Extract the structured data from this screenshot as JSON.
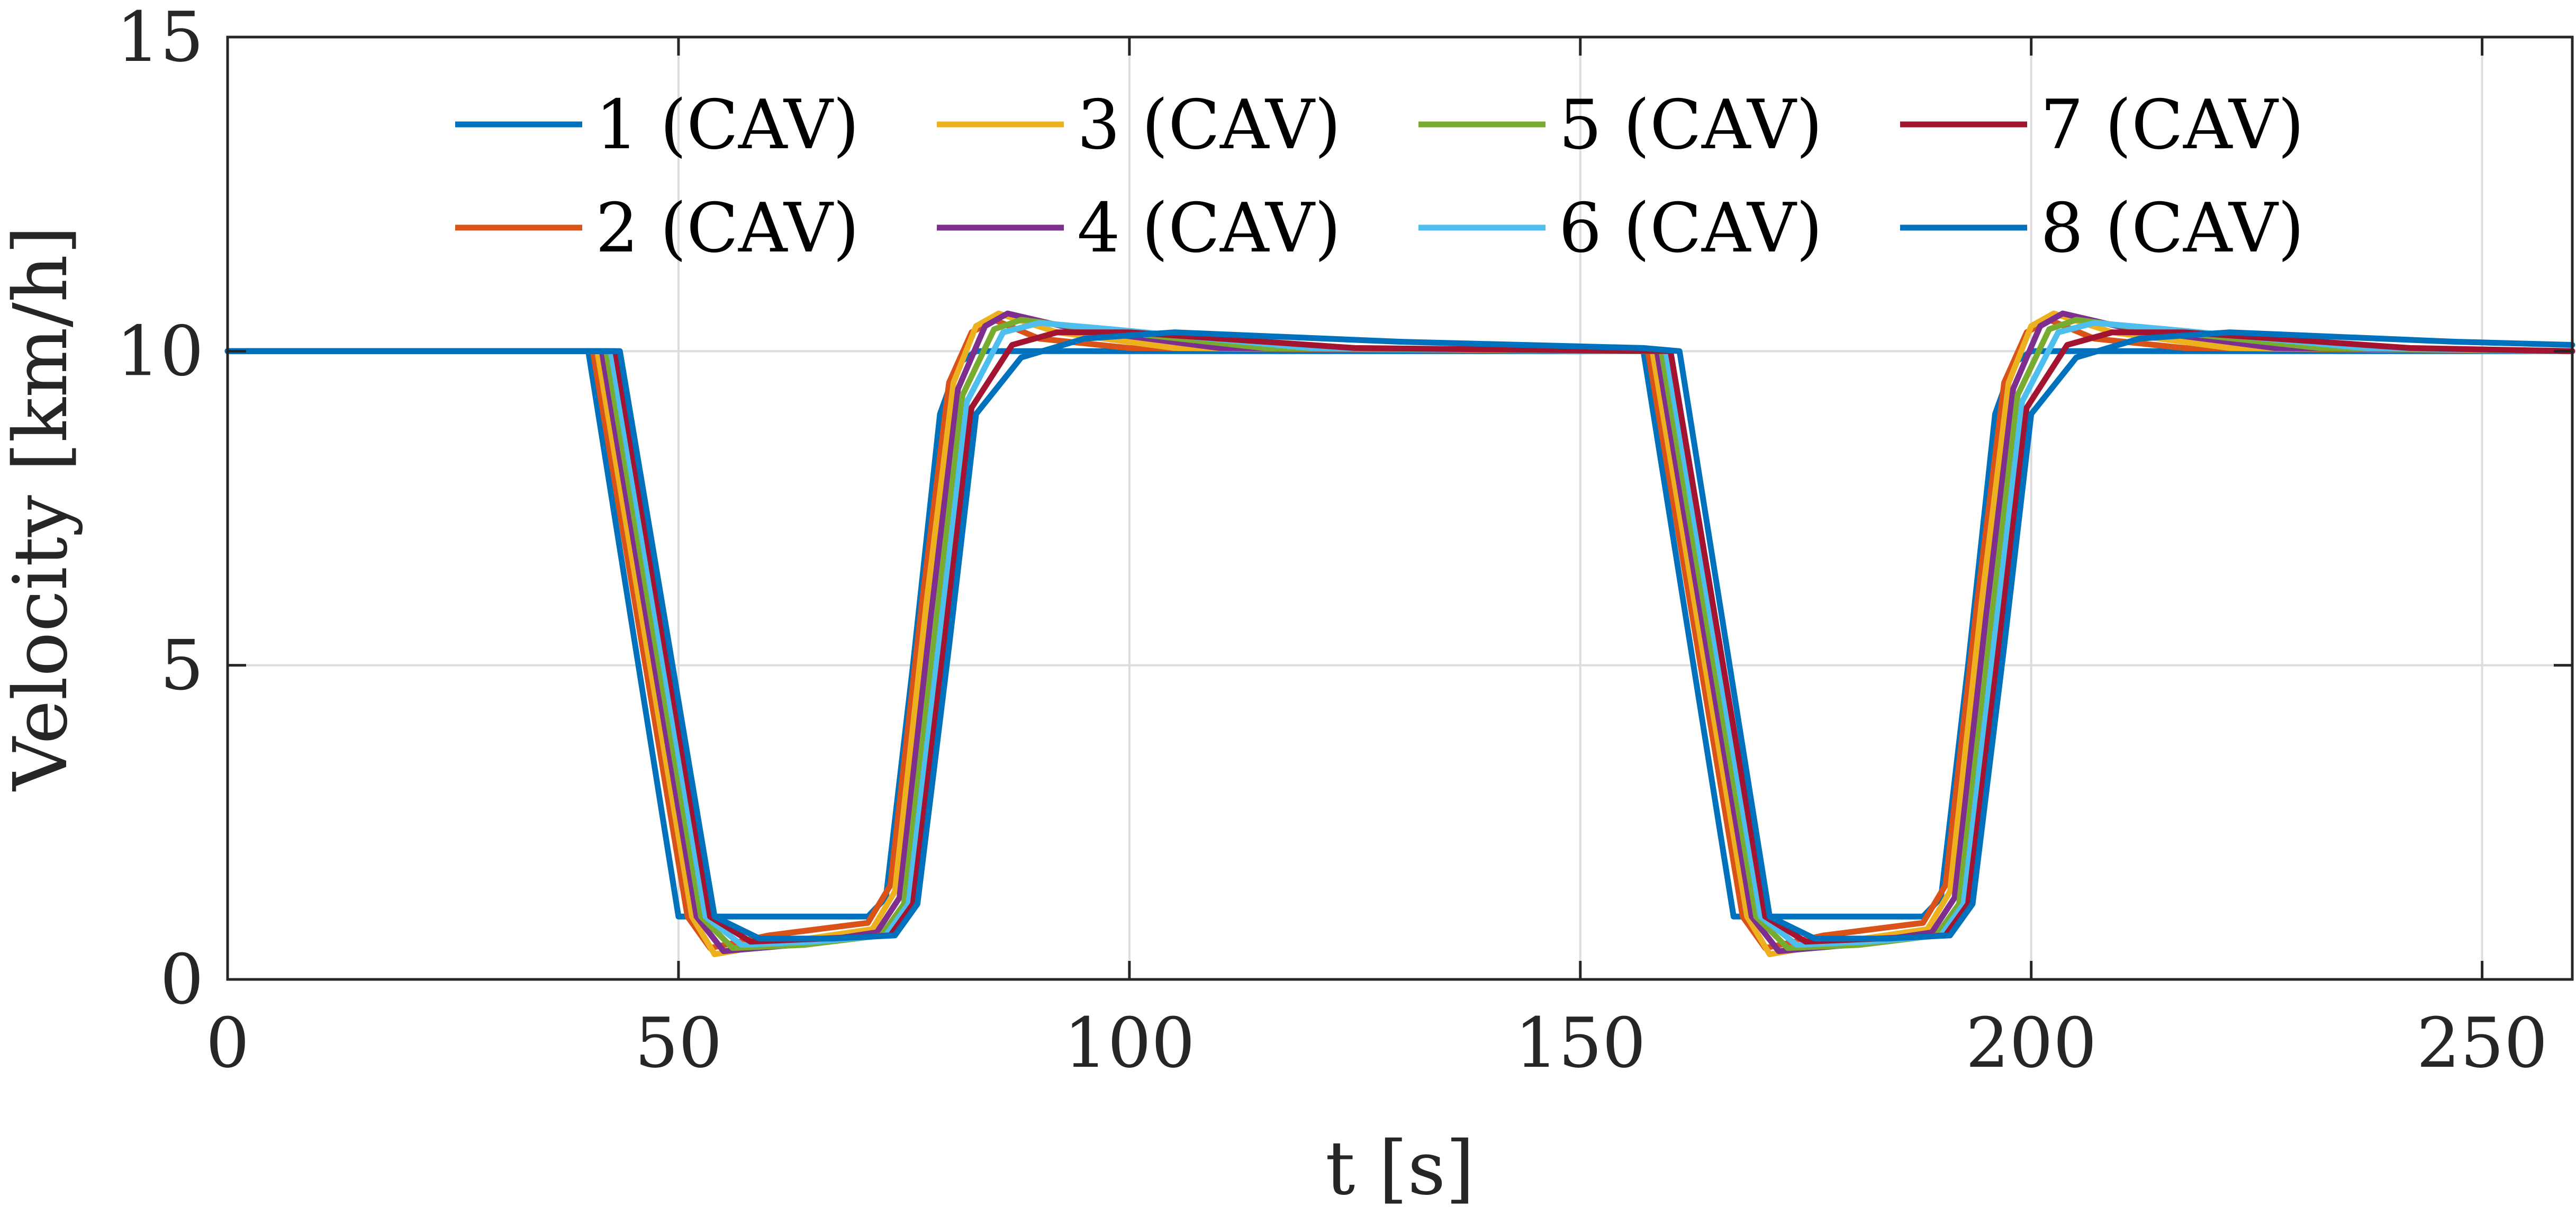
{
  "chart_data": {
    "type": "line",
    "title": "",
    "xlabel": "t [s]",
    "ylabel": "Velocity [km/h]",
    "xlim": [
      0,
      260
    ],
    "ylim": [
      0,
      15
    ],
    "xticks": [
      0,
      50,
      100,
      150,
      200,
      250
    ],
    "yticks": [
      0,
      5,
      10,
      15
    ],
    "xtick_labels": [
      "0",
      "50",
      "100",
      "150",
      "200",
      "250"
    ],
    "ytick_labels": [
      "0",
      "5",
      "10",
      "15"
    ],
    "grid": true,
    "legend_position": "top",
    "series": [
      {
        "name": "1 (CAV)",
        "color": "#0072BD",
        "x": [
          0,
          40,
          50,
          52,
          71,
          73,
          76,
          79,
          81,
          83,
          85,
          90,
          100,
          157,
          167,
          169,
          188,
          190,
          193,
          196,
          198,
          200,
          202,
          207,
          217,
          260
        ],
        "y": [
          10,
          10,
          1.0,
          1.0,
          1.0,
          1.3,
          5,
          9,
          9.8,
          10.0,
          10.0,
          10.0,
          10.0,
          10,
          1.0,
          1.0,
          1.0,
          1.3,
          5,
          9,
          9.8,
          10.0,
          10.0,
          10.0,
          10.0,
          10.0
        ]
      },
      {
        "name": "2 (CAV)",
        "color": "#D95319",
        "x": [
          0,
          40.5,
          51,
          53.5,
          60,
          71,
          73.5,
          77,
          80,
          82.5,
          85,
          90,
          100,
          157.5,
          168,
          170.5,
          177,
          188,
          190.5,
          194,
          197,
          199.5,
          202,
          207,
          217,
          260
        ],
        "y": [
          10,
          10,
          1.0,
          0.5,
          0.7,
          0.9,
          1.5,
          6,
          9.5,
          10.3,
          10.5,
          10.2,
          10.05,
          10,
          1.0,
          0.5,
          0.7,
          0.9,
          1.5,
          6,
          9.5,
          10.3,
          10.5,
          10.2,
          10.05,
          10.0
        ]
      },
      {
        "name": "3 (CAV)",
        "color": "#EDB120",
        "x": [
          0,
          41,
          51.5,
          54,
          62,
          71.5,
          74,
          77.5,
          80.5,
          83,
          85.5,
          92,
          105,
          158,
          168.5,
          171,
          179,
          188.5,
          191,
          194.5,
          197.5,
          200,
          202.5,
          209,
          222,
          260
        ],
        "y": [
          10,
          10,
          1.0,
          0.4,
          0.6,
          0.8,
          1.4,
          6,
          9.5,
          10.4,
          10.6,
          10.3,
          10.05,
          10,
          1.0,
          0.4,
          0.6,
          0.8,
          1.4,
          6,
          9.5,
          10.4,
          10.6,
          10.3,
          10.05,
          10.0
        ]
      },
      {
        "name": "4 (CAV)",
        "color": "#7E2F8E",
        "x": [
          0,
          41.5,
          52,
          55,
          63,
          72,
          74.5,
          78,
          81,
          84,
          86.5,
          94,
          110,
          158.5,
          169,
          172,
          180,
          189,
          191.5,
          195,
          198,
          201,
          203.5,
          211,
          227,
          260
        ],
        "y": [
          10,
          10,
          1.0,
          0.45,
          0.55,
          0.75,
          1.3,
          5.8,
          9.4,
          10.4,
          10.6,
          10.35,
          10.05,
          10,
          1.0,
          0.45,
          0.55,
          0.75,
          1.3,
          5.8,
          9.4,
          10.4,
          10.6,
          10.35,
          10.05,
          10.0
        ]
      },
      {
        "name": "5 (CAV)",
        "color": "#77AC30",
        "x": [
          0,
          42,
          52.5,
          56,
          64,
          72.5,
          75,
          78.5,
          81.5,
          85,
          88,
          96,
          115,
          159,
          169.5,
          173,
          181,
          189.5,
          192,
          195.5,
          198.5,
          202,
          205,
          213,
          232,
          260
        ],
        "y": [
          10,
          10,
          1.0,
          0.5,
          0.55,
          0.7,
          1.2,
          5.6,
          9.3,
          10.35,
          10.5,
          10.35,
          10.05,
          10,
          1.0,
          0.5,
          0.55,
          0.7,
          1.2,
          5.6,
          9.3,
          10.35,
          10.5,
          10.35,
          10.05,
          10.0
        ]
      },
      {
        "name": "6 (CAV)",
        "color": "#4DBEEE",
        "x": [
          0,
          42.5,
          53,
          57,
          65,
          73,
          75.5,
          79,
          82,
          86,
          90,
          98,
          120,
          159.5,
          170,
          174,
          182,
          190,
          192.5,
          196,
          199,
          203,
          207,
          215,
          237,
          260
        ],
        "y": [
          10,
          10,
          1.0,
          0.55,
          0.6,
          0.7,
          1.2,
          5.5,
          9.2,
          10.3,
          10.45,
          10.35,
          10.05,
          10,
          1.0,
          0.55,
          0.6,
          0.7,
          1.2,
          5.5,
          9.2,
          10.3,
          10.45,
          10.35,
          10.05,
          10.0
        ]
      },
      {
        "name": "7 (CAV)",
        "color": "#A2142F",
        "x": [
          0,
          43,
          53.5,
          58,
          66,
          73.5,
          76,
          79.5,
          82.5,
          87,
          92,
          100,
          125,
          160,
          170.5,
          175,
          183,
          190.5,
          193,
          196.5,
          199.5,
          204,
          209,
          217,
          242,
          260
        ],
        "y": [
          10,
          10,
          1.0,
          0.6,
          0.65,
          0.7,
          1.2,
          5.4,
          9.1,
          10.1,
          10.3,
          10.3,
          10.05,
          10,
          1.0,
          0.6,
          0.65,
          0.7,
          1.2,
          5.4,
          9.1,
          10.1,
          10.3,
          10.3,
          10.05,
          10.0
        ]
      },
      {
        "name": "8 (CAV)",
        "color": "#0072BD",
        "x": [
          0,
          43.5,
          54,
          59,
          67,
          74,
          76.5,
          80,
          83,
          88,
          95,
          105,
          130,
          157,
          161,
          171,
          176,
          184,
          191,
          193.5,
          197,
          200,
          205,
          212,
          222,
          247,
          260
        ],
        "y": [
          10,
          10,
          1.0,
          0.65,
          0.65,
          0.7,
          1.2,
          5.3,
          9.0,
          9.9,
          10.2,
          10.3,
          10.15,
          10.05,
          10,
          1.0,
          0.65,
          0.65,
          0.7,
          1.2,
          5.3,
          9.0,
          9.9,
          10.2,
          10.3,
          10.15,
          10.1
        ]
      }
    ]
  }
}
